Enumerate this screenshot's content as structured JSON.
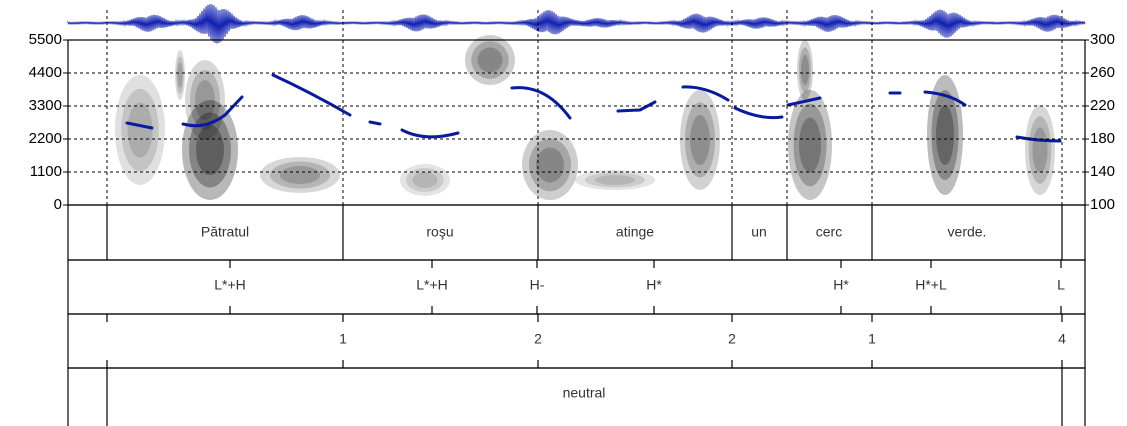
{
  "spectrogram": {
    "frequency_axis": {
      "ylim": [
        0,
        5500
      ],
      "ticks": [
        0,
        1100,
        2200,
        3300,
        4400,
        5500
      ]
    },
    "pitch_axis": {
      "ylim": [
        100,
        300
      ],
      "ticks": [
        100,
        140,
        180,
        220,
        260,
        300
      ]
    }
  },
  "tiers": [
    {
      "labels": [
        "Pătratul",
        "roşu",
        "atinge",
        "un",
        "cerc",
        "verde."
      ]
    },
    {
      "labels": [
        "L*+H",
        "L*+H",
        "H-",
        "H*",
        "H*",
        "H*+L",
        "L"
      ]
    },
    {
      "labels": [
        1,
        2,
        2,
        1,
        4
      ]
    },
    {
      "labels": [
        "neutral"
      ]
    }
  ]
}
